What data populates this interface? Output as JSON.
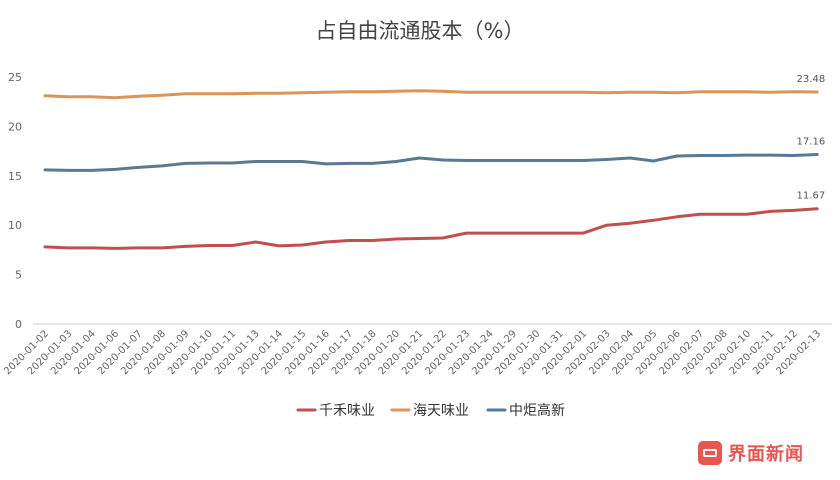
{
  "chart_data": {
    "type": "line",
    "title": "占自由流通股本（%）",
    "xlabel": "",
    "ylabel": "",
    "ylim": [
      0,
      25
    ],
    "yticks": [
      0,
      5,
      10,
      15,
      20,
      25
    ],
    "grid": false,
    "legend_position": "bottom",
    "categories": [
      "2020-01-02",
      "2020-01-03",
      "2020-01-04",
      "2020-01-06",
      "2020-01-07",
      "2020-01-08",
      "2020-01-09",
      "2020-01-10",
      "2020-01-11",
      "2020-01-13",
      "2020-01-14",
      "2020-01-15",
      "2020-01-16",
      "2020-01-17",
      "2020-01-18",
      "2020-01-20",
      "2020-01-21",
      "2020-01-22",
      "2020-01-23",
      "2020-01-24",
      "2020-01-29",
      "2020-01-30",
      "2020-01-31",
      "2020-02-01",
      "2020-02-03",
      "2020-02-04",
      "2020-02-05",
      "2020-02-06",
      "2020-02-07",
      "2020-02-08",
      "2020-02-10",
      "2020-02-11",
      "2020-02-12",
      "2020-02-13"
    ],
    "series": [
      {
        "name": "千禾味业",
        "color": "#c0504d",
        "end_label": "11.67",
        "values": [
          7.8,
          7.7,
          7.7,
          7.65,
          7.7,
          7.7,
          7.85,
          7.95,
          7.95,
          8.3,
          7.9,
          8.0,
          8.3,
          8.45,
          8.45,
          8.6,
          8.65,
          8.7,
          9.2,
          9.2,
          9.2,
          9.2,
          9.2,
          9.2,
          10.0,
          10.2,
          10.5,
          10.85,
          11.1,
          11.1,
          11.1,
          11.4,
          11.5,
          11.67
        ]
      },
      {
        "name": "海天味业",
        "color": "#d9955a",
        "end_label": "23.48",
        "values": [
          23.1,
          23.0,
          23.0,
          22.9,
          23.05,
          23.15,
          23.3,
          23.3,
          23.3,
          23.35,
          23.35,
          23.4,
          23.45,
          23.5,
          23.5,
          23.55,
          23.6,
          23.55,
          23.45,
          23.45,
          23.45,
          23.45,
          23.45,
          23.45,
          23.4,
          23.45,
          23.45,
          23.4,
          23.5,
          23.5,
          23.5,
          23.45,
          23.5,
          23.48
        ]
      },
      {
        "name": "中炬高新",
        "color": "#5a7a94",
        "end_label": "17.16",
        "values": [
          15.6,
          15.55,
          15.55,
          15.65,
          15.85,
          16.0,
          16.25,
          16.3,
          16.3,
          16.45,
          16.45,
          16.45,
          16.2,
          16.25,
          16.25,
          16.45,
          16.8,
          16.6,
          16.55,
          16.55,
          16.55,
          16.55,
          16.55,
          16.55,
          16.65,
          16.8,
          16.5,
          17.0,
          17.05,
          17.05,
          17.1,
          17.1,
          17.05,
          17.16
        ]
      }
    ]
  },
  "watermark": {
    "text": "界面新闻",
    "icon": "jiemian-logo-icon"
  }
}
